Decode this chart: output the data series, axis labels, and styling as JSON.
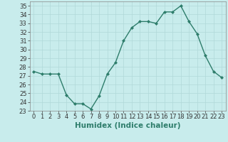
{
  "x": [
    0,
    1,
    2,
    3,
    4,
    5,
    6,
    7,
    8,
    9,
    10,
    11,
    12,
    13,
    14,
    15,
    16,
    17,
    18,
    19,
    20,
    21,
    22,
    23
  ],
  "y": [
    27.5,
    27.2,
    27.2,
    27.2,
    24.8,
    23.8,
    23.8,
    23.2,
    24.7,
    27.2,
    28.5,
    31.0,
    32.5,
    33.2,
    33.2,
    33.0,
    34.3,
    34.3,
    35.0,
    33.2,
    31.8,
    29.3,
    27.5,
    26.8
  ],
  "line_color": "#2e7d6b",
  "marker": "D",
  "marker_size": 2.0,
  "bg_color": "#c8ecec",
  "grid_color": "#b0d8d8",
  "xlabel": "Humidex (Indice chaleur)",
  "xlim": [
    -0.5,
    23.5
  ],
  "ylim": [
    23,
    35.5
  ],
  "yticks": [
    23,
    24,
    25,
    26,
    27,
    28,
    29,
    30,
    31,
    32,
    33,
    34,
    35
  ],
  "xticks": [
    0,
    1,
    2,
    3,
    4,
    5,
    6,
    7,
    8,
    9,
    10,
    11,
    12,
    13,
    14,
    15,
    16,
    17,
    18,
    19,
    20,
    21,
    22,
    23
  ],
  "tick_label_fontsize": 6.0,
  "xlabel_fontsize": 7.5,
  "line_width": 1.0
}
